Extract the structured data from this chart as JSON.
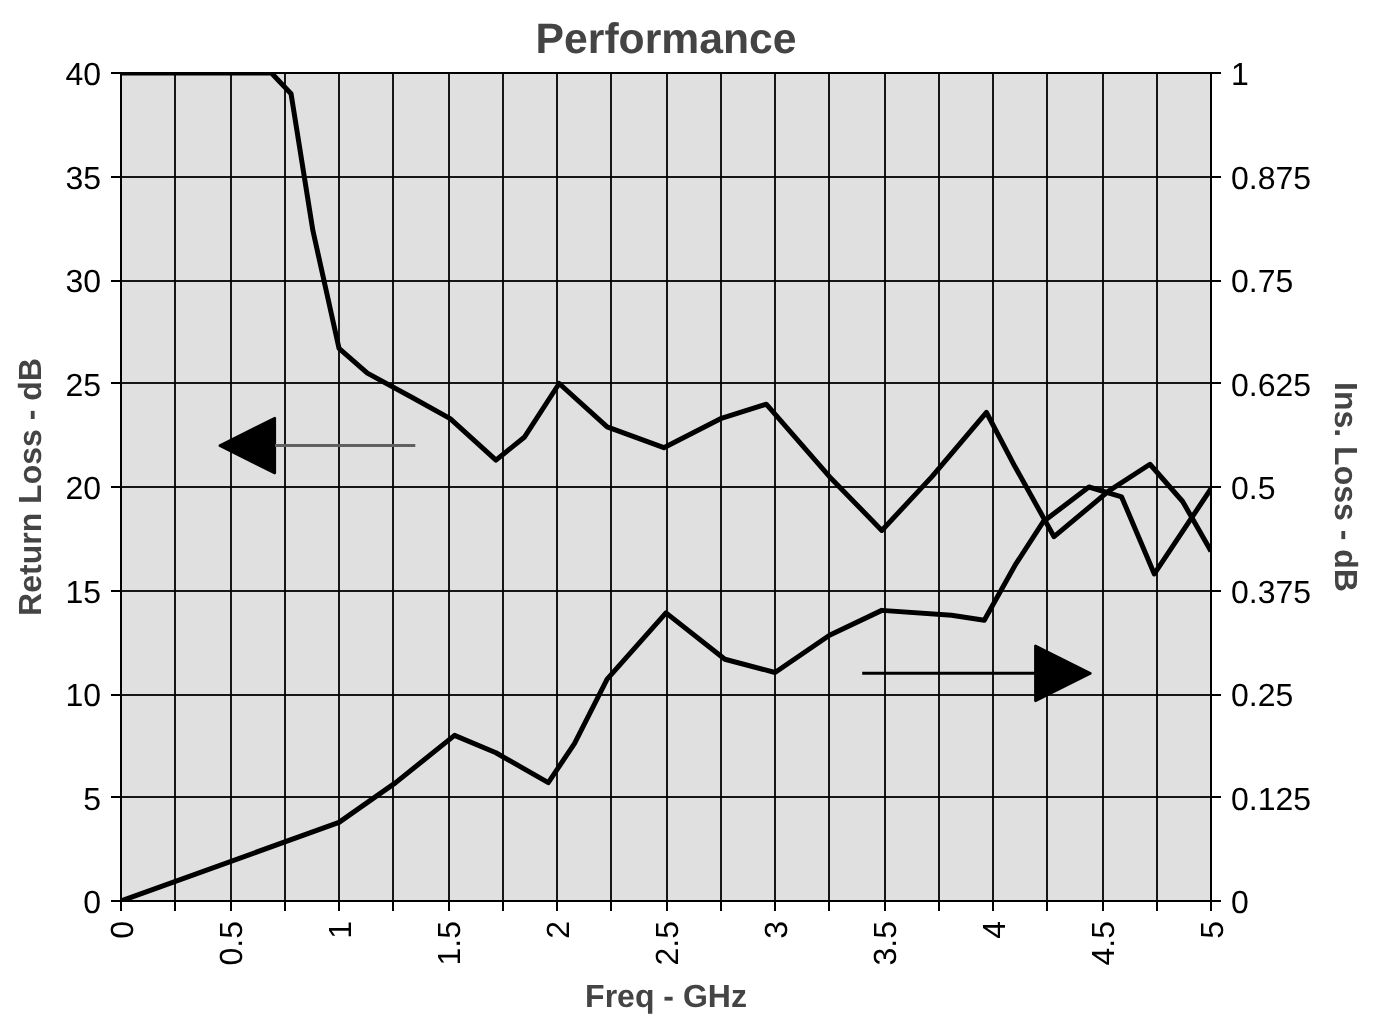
{
  "chart_data": {
    "type": "line",
    "title": "Performance",
    "xlabel": "Freq - GHz",
    "ylabel": "Return Loss - dB",
    "y2label": "Ins. Loss - dB",
    "xlim": [
      0,
      5
    ],
    "xticks": [
      0,
      {
        "value": 0.25,
        "label": null
      },
      0.5,
      {
        "value": 0.75,
        "label": null
      },
      1,
      {
        "value": 1.25,
        "label": null
      },
      1.5,
      {
        "value": 1.75,
        "label": null
      },
      2,
      {
        "value": 2.25,
        "label": null
      },
      2.5,
      {
        "value": 2.75,
        "label": null
      },
      3,
      {
        "value": 3.25,
        "label": null
      },
      3.5,
      {
        "value": 3.75,
        "label": null
      },
      4,
      {
        "value": 4.25,
        "label": null
      },
      4.5,
      {
        "value": 4.75,
        "label": null
      },
      5
    ],
    "ylim": [
      0,
      40
    ],
    "yticks": [
      0,
      5,
      10,
      15,
      20,
      25,
      30,
      35,
      40
    ],
    "y2lim": [
      0,
      1
    ],
    "y2ticks": [
      0,
      0.125,
      0.25,
      0.375,
      0.5,
      0.625,
      0.75,
      0.875,
      1
    ],
    "grid": true,
    "line_style": "solid",
    "marker": "none",
    "series": [
      {
        "color": "#000000",
        "x": [
          0,
          0.5,
          0.69,
          0.78,
          0.88,
          1.0,
          1.13,
          1.34,
          1.51,
          1.72,
          1.85,
          2.01,
          2.23,
          2.49,
          2.75,
          2.96,
          3.25,
          3.49,
          3.72,
          3.97,
          4.1,
          4.28,
          4.53,
          4.72,
          4.87,
          5.0
        ],
        "values": [
          40,
          40,
          40,
          39,
          32.4,
          26.7,
          25.5,
          24.3,
          23.3,
          21.3,
          22.4,
          25,
          22.9,
          21.9,
          23.3,
          24,
          20.5,
          17.9,
          20.5,
          23.6,
          21,
          17.6,
          19.8,
          21.1,
          19.3,
          16.9
        ]
      },
      {
        "color": "#000000",
        "axis": "y2",
        "x": [
          0,
          1.0,
          1.26,
          1.53,
          1.72,
          1.96,
          2.08,
          2.23,
          2.5,
          2.77,
          3.0,
          3.25,
          3.49,
          3.81,
          3.96,
          4.1,
          4.23,
          4.44,
          4.59,
          4.74,
          5.0
        ],
        "values": [
          0,
          0.095,
          0.143,
          0.2,
          0.179,
          0.143,
          0.19,
          0.268,
          0.348,
          0.292,
          0.276,
          0.321,
          0.351,
          0.345,
          0.339,
          0.405,
          0.458,
          0.5,
          0.488,
          0.395,
          0.498
        ]
      }
    ]
  }
}
